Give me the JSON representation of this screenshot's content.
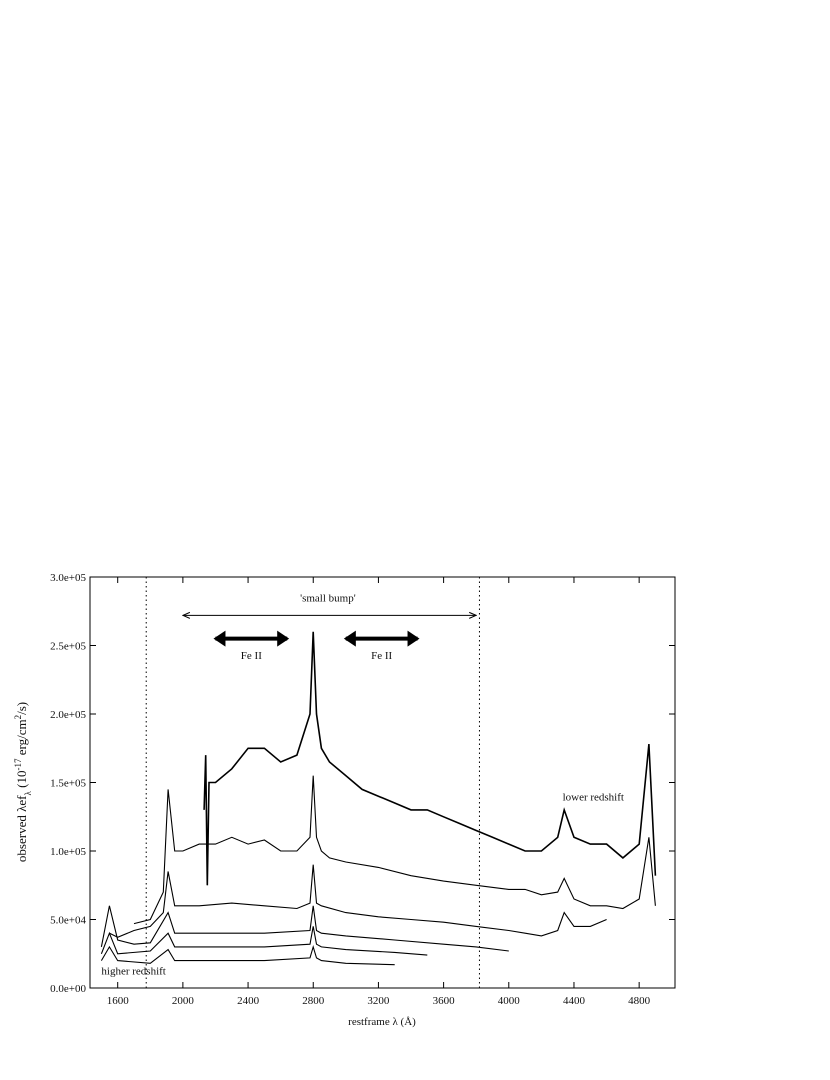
{
  "chart_data": {
    "type": "line",
    "x_label": "restframe λ (Å)",
    "y_label": {
      "main": "observed  λef",
      "sub": "λ",
      "mid": " (10",
      "sup1": "-17",
      "mid2": " erg/cm",
      "sup2": "2",
      "end": "/s)"
    },
    "xlim": [
      1430,
      5020
    ],
    "ylim": [
      0,
      300000
    ],
    "xticks": [
      1600,
      2000,
      2400,
      2800,
      3200,
      3600,
      4000,
      4400,
      4800
    ],
    "yticks": [
      {
        "value": 0,
        "label": "0.0e+00"
      },
      {
        "value": 50000,
        "label": "5.0e+04"
      },
      {
        "value": 100000,
        "label": "1.0e+05"
      },
      {
        "value": 150000,
        "label": "1.5e+05"
      },
      {
        "value": 200000,
        "label": "2.0e+05"
      },
      {
        "value": 250000,
        "label": "2.5e+05"
      },
      {
        "value": 300000,
        "label": "3.0e+05"
      }
    ],
    "vlines": [
      1775,
      3820
    ],
    "annotations": [
      {
        "text": "'small bump'",
        "x": 2890,
        "y": 282000,
        "arrow": [
          2000,
          3800
        ],
        "arrow_y": 272000
      },
      {
        "text": "Fe II",
        "x": 2420,
        "y": 240000,
        "arrow": [
          2200,
          2640
        ],
        "arrow_y": 255000
      },
      {
        "text": "Fe II",
        "x": 3220,
        "y": 240000,
        "arrow": [
          3000,
          3440
        ],
        "arrow_y": 255000
      },
      {
        "text": "lower redshift",
        "x": 4330,
        "y": 137000
      },
      {
        "text": "higher redshift",
        "x": 1500,
        "y": 10000
      }
    ],
    "series": [
      {
        "color": "#000000",
        "x": [
          2130,
          2140,
          2150,
          2160,
          2200,
          2300,
          2400,
          2500,
          2600,
          2700,
          2780,
          2800,
          2820,
          2850,
          2900,
          3000,
          3100,
          3200,
          3300,
          3400,
          3500,
          3600,
          3700,
          3800,
          3900,
          4000,
          4100,
          4200,
          4300,
          4340,
          4400,
          4500,
          4600,
          4700,
          4800,
          4860,
          4900
        ],
        "values": [
          130000,
          170000,
          75000,
          150000,
          150000,
          160000,
          175000,
          175000,
          165000,
          170000,
          200000,
          260000,
          200000,
          175000,
          165000,
          155000,
          145000,
          140000,
          135000,
          130000,
          130000,
          125000,
          120000,
          115000,
          110000,
          105000,
          100000,
          100000,
          110000,
          130000,
          110000,
          105000,
          105000,
          95000,
          105000,
          178000,
          82000
        ]
      },
      {
        "color": "#000000",
        "x": [
          1700,
          1800,
          1880,
          1909,
          1950,
          2000,
          2100,
          2200,
          2300,
          2400,
          2500,
          2600,
          2700,
          2780,
          2800,
          2820,
          2850,
          2900,
          3000,
          3200,
          3400,
          3600,
          3800,
          4000,
          4100,
          4200,
          4300,
          4340,
          4400,
          4500,
          4600,
          4700,
          4800,
          4860,
          4900
        ],
        "values": [
          47000,
          50000,
          70000,
          145000,
          100000,
          100000,
          105000,
          105000,
          110000,
          105000,
          108000,
          100000,
          100000,
          110000,
          155000,
          110000,
          100000,
          95000,
          92000,
          88000,
          82000,
          78000,
          75000,
          72000,
          72000,
          68000,
          70000,
          80000,
          65000,
          60000,
          60000,
          58000,
          65000,
          110000,
          60000
        ]
      },
      {
        "color": "#000000",
        "x": [
          1550,
          1600,
          1700,
          1800,
          1880,
          1909,
          1950,
          2100,
          2300,
          2500,
          2700,
          2780,
          2800,
          2820,
          2850,
          3000,
          3200,
          3400,
          3600,
          3800,
          4000,
          4100,
          4200,
          4300,
          4340,
          4400,
          4500,
          4600
        ],
        "values": [
          40000,
          37000,
          42000,
          45000,
          55000,
          85000,
          60000,
          60000,
          62000,
          60000,
          58000,
          62000,
          90000,
          62000,
          60000,
          55000,
          52000,
          50000,
          48000,
          45000,
          42000,
          40000,
          38000,
          42000,
          55000,
          45000,
          45000,
          50000
        ]
      },
      {
        "color": "#000000",
        "x": [
          1500,
          1549,
          1600,
          1700,
          1800,
          1909,
          1950,
          2200,
          2500,
          2780,
          2800,
          2820,
          2850,
          3000,
          3300,
          3600,
          3800,
          4000
        ],
        "values": [
          30000,
          60000,
          35000,
          32000,
          33000,
          55000,
          40000,
          40000,
          40000,
          42000,
          60000,
          42000,
          40000,
          38000,
          35000,
          32000,
          30000,
          27000
        ]
      },
      {
        "color": "#000000",
        "x": [
          1500,
          1549,
          1600,
          1800,
          1909,
          1950,
          2200,
          2500,
          2780,
          2800,
          2820,
          2850,
          3000,
          3300,
          3500
        ],
        "values": [
          25000,
          40000,
          25000,
          27000,
          40000,
          30000,
          30000,
          30000,
          32000,
          45000,
          32000,
          30000,
          28000,
          26000,
          24000
        ]
      },
      {
        "color": "#000000",
        "x": [
          1500,
          1549,
          1600,
          1800,
          1909,
          1950,
          2200,
          2500,
          2780,
          2800,
          2820,
          2850,
          3000,
          3300
        ],
        "values": [
          20000,
          30000,
          20000,
          18000,
          28000,
          20000,
          20000,
          20000,
          22000,
          30000,
          22000,
          20000,
          18000,
          17000
        ]
      }
    ]
  }
}
